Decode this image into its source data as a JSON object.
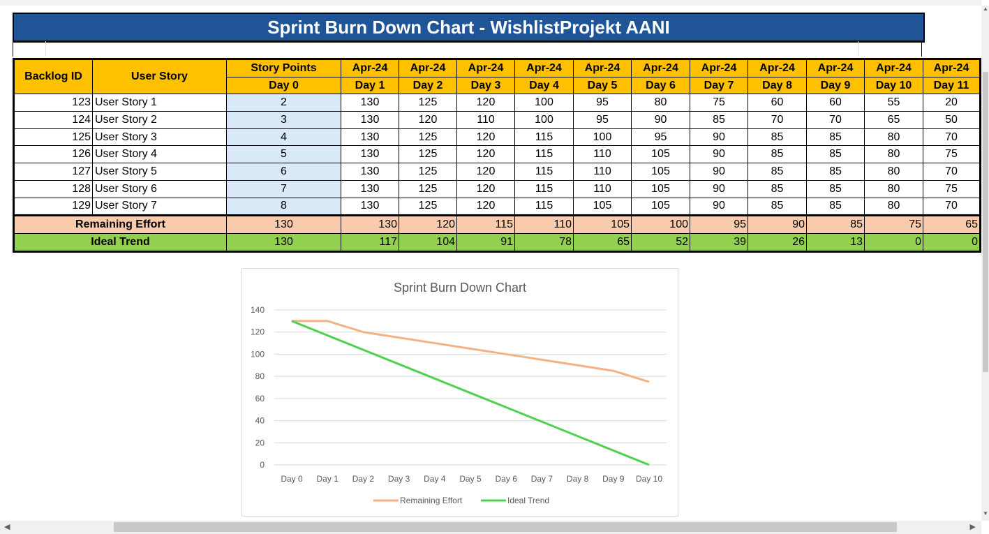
{
  "title": "Sprint Burn Down Chart - WishlistProjekt AANI",
  "table": {
    "col_backlog": "Backlog ID",
    "col_story": "User Story",
    "col_points": "Story Points",
    "day_headers": [
      {
        "date": "",
        "day": "Day 0"
      },
      {
        "date": "Apr-24",
        "day": "Day 1"
      },
      {
        "date": "Apr-24",
        "day": "Day 2"
      },
      {
        "date": "Apr-24",
        "day": "Day 3"
      },
      {
        "date": "Apr-24",
        "day": "Day 4"
      },
      {
        "date": "Apr-24",
        "day": "Day 5"
      },
      {
        "date": "Apr-24",
        "day": "Day 6"
      },
      {
        "date": "Apr-24",
        "day": "Day 7"
      },
      {
        "date": "Apr-24",
        "day": "Day 8"
      },
      {
        "date": "Apr-24",
        "day": "Day 9"
      },
      {
        "date": "Apr-24",
        "day": "Day 10"
      },
      {
        "date": "Apr-24",
        "day": "Day 11"
      }
    ],
    "rows": [
      {
        "id": "123",
        "story": "User Story 1",
        "points": "2",
        "values": [
          "130",
          "125",
          "120",
          "100",
          "95",
          "80",
          "75",
          "60",
          "60",
          "55",
          "20"
        ]
      },
      {
        "id": "124",
        "story": "User Story  2",
        "points": "3",
        "values": [
          "130",
          "120",
          "110",
          "100",
          "95",
          "90",
          "85",
          "70",
          "70",
          "65",
          "50"
        ]
      },
      {
        "id": "125",
        "story": "User Story 3",
        "points": "4",
        "values": [
          "130",
          "125",
          "120",
          "115",
          "100",
          "95",
          "90",
          "85",
          "85",
          "80",
          "70"
        ]
      },
      {
        "id": "126",
        "story": "User Story 4",
        "points": "5",
        "values": [
          "130",
          "125",
          "120",
          "115",
          "110",
          "105",
          "90",
          "85",
          "85",
          "80",
          "75"
        ]
      },
      {
        "id": "127",
        "story": "User Story 5",
        "points": "6",
        "values": [
          "130",
          "125",
          "120",
          "115",
          "110",
          "105",
          "90",
          "85",
          "85",
          "80",
          "70"
        ]
      },
      {
        "id": "128",
        "story": "User Story 6",
        "points": "7",
        "values": [
          "130",
          "125",
          "120",
          "115",
          "110",
          "105",
          "90",
          "85",
          "85",
          "80",
          "75"
        ]
      },
      {
        "id": "129",
        "story": "User Story 7",
        "points": "8",
        "values": [
          "130",
          "125",
          "120",
          "115",
          "105",
          "105",
          "90",
          "85",
          "85",
          "80",
          "70"
        ]
      }
    ],
    "remaining_label": "Remaining Effort",
    "remaining_values": [
      "130",
      "130",
      "120",
      "115",
      "110",
      "105",
      "100",
      "95",
      "90",
      "85",
      "75",
      "65"
    ],
    "ideal_label": "Ideal Trend",
    "ideal_values": [
      "130",
      "117",
      "104",
      "91",
      "78",
      "65",
      "52",
      "39",
      "26",
      "13",
      "0",
      "0"
    ]
  },
  "chart_data": {
    "type": "line",
    "title": "Sprint Burn Down Chart",
    "categories": [
      "Day 0",
      "Day 1",
      "Day 2",
      "Day 3",
      "Day 4",
      "Day 5",
      "Day 6",
      "Day 7",
      "Day 8",
      "Day 9",
      "Day 10"
    ],
    "series": [
      {
        "name": "Remaining Effort",
        "color": "#f4b183",
        "values": [
          130,
          130,
          120,
          115,
          110,
          105,
          100,
          95,
          90,
          85,
          75
        ]
      },
      {
        "name": "Ideal Trend",
        "color": "#4fd14f",
        "values": [
          130,
          117,
          104,
          91,
          78,
          65,
          52,
          39,
          26,
          13,
          0
        ]
      }
    ],
    "ylim": [
      0,
      140
    ],
    "yticks": [
      0,
      20,
      40,
      60,
      80,
      100,
      120,
      140
    ],
    "grid": true,
    "legend": "bottom"
  },
  "colors": {
    "title_bg": "#1f5597",
    "header_bg": "#ffc000",
    "story_points_bg": "#dae9f8",
    "remaining_bg": "#f8cbad",
    "ideal_bg": "#92d050"
  }
}
